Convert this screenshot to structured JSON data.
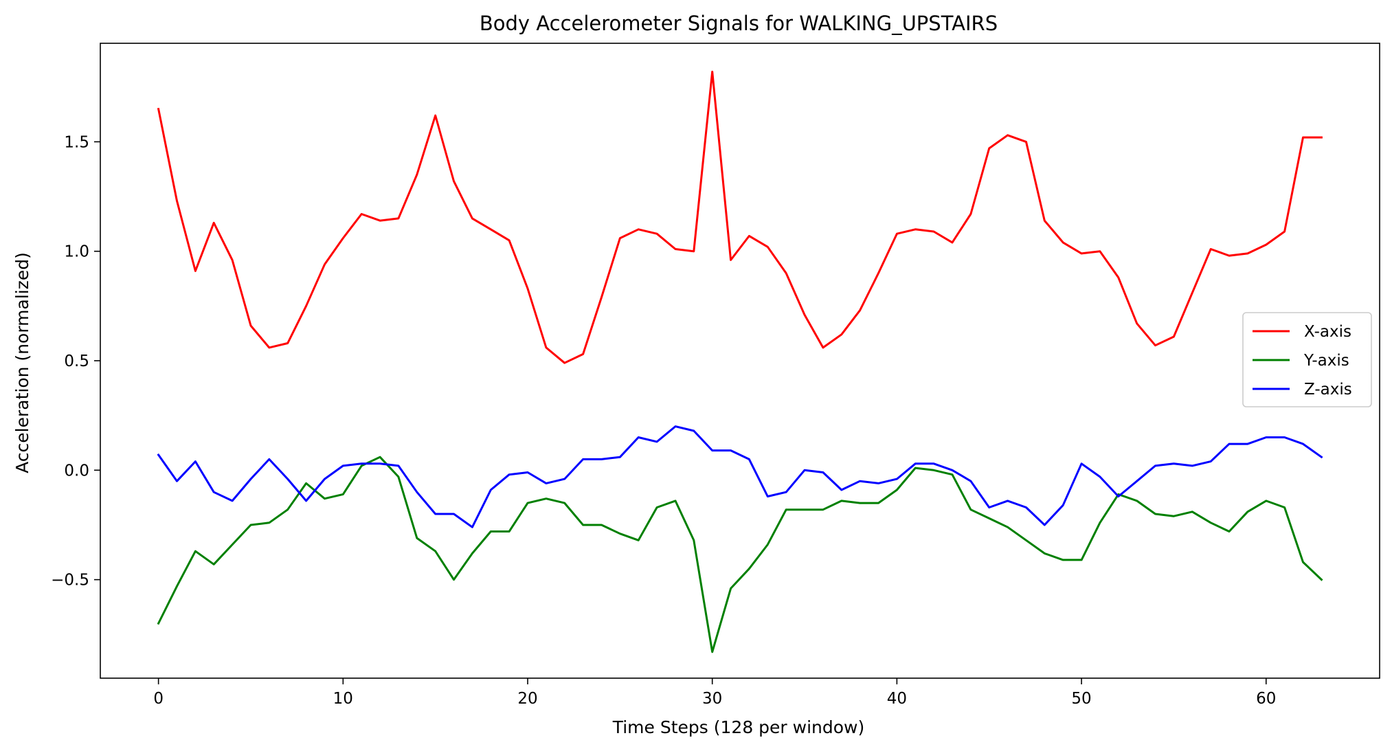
{
  "chart_data": {
    "type": "line",
    "title": "Body Accelerometer Signals for WALKING_UPSTAIRS",
    "xlabel": "Time Steps (128 per window)",
    "ylabel": "Acceleration (normalized)",
    "xlim": [
      -3.15,
      66.15
    ],
    "ylim": [
      -0.95,
      1.95
    ],
    "xticks": [
      0,
      10,
      20,
      30,
      40,
      50,
      60
    ],
    "xtick_labels": [
      "0",
      "10",
      "20",
      "30",
      "40",
      "50",
      "60"
    ],
    "yticks": [
      -0.5,
      0.0,
      0.5,
      1.0,
      1.5
    ],
    "ytick_labels": [
      "−0.5",
      "0.0",
      "0.5",
      "1.0",
      "1.5"
    ],
    "grid": false,
    "legend_position": "center-right",
    "x": [
      0,
      1,
      2,
      3,
      4,
      5,
      6,
      7,
      8,
      9,
      10,
      11,
      12,
      13,
      14,
      15,
      16,
      17,
      18,
      19,
      20,
      21,
      22,
      23,
      24,
      25,
      26,
      27,
      28,
      29,
      30,
      31,
      32,
      33,
      34,
      35,
      36,
      37,
      38,
      39,
      40,
      41,
      42,
      43,
      44,
      45,
      46,
      47,
      48,
      49,
      50,
      51,
      52,
      53,
      54,
      55,
      56,
      57,
      58,
      59,
      60,
      61,
      62,
      63
    ],
    "series": [
      {
        "name": "X-axis",
        "color": "#ff0000",
        "values": [
          1.65,
          1.23,
          0.91,
          1.13,
          0.96,
          0.66,
          0.56,
          0.58,
          0.75,
          0.94,
          1.06,
          1.17,
          1.14,
          1.15,
          1.35,
          1.62,
          1.32,
          1.15,
          1.1,
          1.05,
          0.83,
          0.56,
          0.49,
          0.53,
          0.79,
          1.06,
          1.1,
          1.08,
          1.01,
          1.0,
          1.82,
          0.96,
          1.07,
          1.02,
          0.9,
          0.71,
          0.56,
          0.62,
          0.73,
          0.9,
          1.08,
          1.1,
          1.09,
          1.04,
          1.17,
          1.47,
          1.53,
          1.5,
          1.14,
          1.04,
          0.99,
          1.0,
          0.88,
          0.67,
          0.57,
          0.61,
          0.81,
          1.01,
          0.98,
          0.99,
          1.03,
          1.09,
          1.52,
          1.52
        ]
      },
      {
        "name": "Y-axis",
        "color": "#008000",
        "values": [
          -0.7,
          -0.53,
          -0.37,
          -0.43,
          -0.34,
          -0.25,
          -0.24,
          -0.18,
          -0.06,
          -0.13,
          -0.11,
          0.02,
          0.06,
          -0.03,
          -0.31,
          -0.37,
          -0.5,
          -0.38,
          -0.28,
          -0.28,
          -0.15,
          -0.13,
          -0.15,
          -0.25,
          -0.25,
          -0.29,
          -0.32,
          -0.17,
          -0.14,
          -0.32,
          -0.83,
          -0.54,
          -0.45,
          -0.34,
          -0.18,
          -0.18,
          -0.18,
          -0.14,
          -0.15,
          -0.15,
          -0.09,
          0.01,
          0.0,
          -0.02,
          -0.18,
          -0.22,
          -0.26,
          -0.32,
          -0.38,
          -0.41,
          -0.41,
          -0.24,
          -0.11,
          -0.14,
          -0.2,
          -0.21,
          -0.19,
          -0.24,
          -0.28,
          -0.19,
          -0.14,
          -0.17,
          -0.42,
          -0.5
        ]
      },
      {
        "name": "Z-axis",
        "color": "#0000ff",
        "values": [
          0.07,
          -0.05,
          0.04,
          -0.1,
          -0.14,
          -0.04,
          0.05,
          -0.04,
          -0.14,
          -0.04,
          0.02,
          0.03,
          0.03,
          0.02,
          -0.1,
          -0.2,
          -0.2,
          -0.26,
          -0.09,
          -0.02,
          -0.01,
          -0.06,
          -0.04,
          0.05,
          0.05,
          0.06,
          0.15,
          0.13,
          0.2,
          0.18,
          0.09,
          0.09,
          0.05,
          -0.12,
          -0.1,
          0.0,
          -0.01,
          -0.09,
          -0.05,
          -0.06,
          -0.04,
          0.03,
          0.03,
          0.0,
          -0.05,
          -0.17,
          -0.14,
          -0.17,
          -0.25,
          -0.16,
          0.03,
          -0.03,
          -0.12,
          -0.05,
          0.02,
          0.03,
          0.02,
          0.04,
          0.12,
          0.12,
          0.15,
          0.15,
          0.12,
          0.06
        ]
      }
    ]
  }
}
